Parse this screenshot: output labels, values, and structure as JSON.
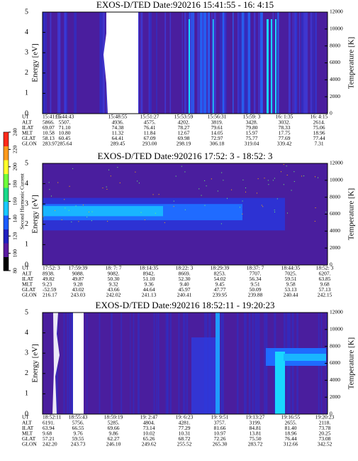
{
  "chart_data": [
    {
      "type": "spectrogram",
      "title": "EXOS-D/TED   Date:920216  15:41:55 - 16: 4:15",
      "ylabel": "Energy [eV]",
      "y2label": "Temperature [K]",
      "ylim": [
        0,
        5
      ],
      "yticks": [
        0,
        1,
        2,
        3,
        4,
        5
      ],
      "y2lim": [
        0,
        12000
      ],
      "y2ticks": [
        0,
        2000,
        4000,
        6000,
        8000,
        10000,
        12000
      ],
      "ephemeris": [
        {
          "label": "UT",
          "values": [
            "15:41:55",
            "15:44:43",
            "15:48:55",
            "15:51:27",
            "15:53:59",
            "15:56:31",
            "15:59: 3",
            "16: 1:35",
            "16: 4:15"
          ]
        },
        {
          "label": "ALT",
          "values": [
            "5866.",
            "5507.",
            "4936.",
            "4575.",
            "4202.",
            "3819.",
            "3428.",
            "3032.",
            "2614."
          ]
        },
        {
          "label": "ILAT",
          "values": [
            "69.07",
            "71.10",
            "74.38",
            "76.41",
            "78.27",
            "79.61",
            "79.80",
            "78.33",
            "75.06"
          ]
        },
        {
          "label": "MLT",
          "values": [
            "10.58",
            "10.80",
            "11.32",
            "11.84",
            "12.67",
            "14.05",
            "15.97",
            "17.75",
            "18.96"
          ]
        },
        {
          "label": "GLAT",
          "values": [
            "58.13",
            "60.45",
            "64.41",
            "67.09",
            "69.98",
            "72.97",
            "75.77",
            "77.69",
            "77.44"
          ]
        },
        {
          "label": "GLON",
          "values": [
            "283.97",
            "285.64",
            "289.45",
            "293.00",
            "298.19",
            "306.18",
            "319.04",
            "339.42",
            "7.31"
          ]
        }
      ]
    },
    {
      "type": "spectrogram",
      "title": "EXOS-D/TED   Date:920216  17:52: 3 - 18:52: 3",
      "ylabel": "Energy [eV]",
      "y2label": "Temperature [K]",
      "ylim": [
        0,
        5
      ],
      "yticks": [
        0,
        1,
        2,
        3,
        4,
        5
      ],
      "y2lim": [
        0,
        12000
      ],
      "y2ticks": [
        0,
        2000,
        4000,
        6000,
        8000,
        10000,
        12000
      ],
      "ephemeris": [
        {
          "label": "UT",
          "values": [
            "17:52: 3",
            "17:59:39",
            "18: 7: 7",
            "18:14:35",
            "18:22: 3",
            "18:29:39",
            "18:37: 7",
            "18:44:35",
            "18:52: 3"
          ]
        },
        {
          "label": "ALT",
          "values": [
            "8938.",
            "9088.",
            "9082.",
            "8942.",
            "8669.",
            "8253.",
            "7707.",
            "7025.",
            "6207."
          ]
        },
        {
          "label": "ILAT",
          "values": [
            "49.82",
            "49.87",
            "50.30",
            "51.10",
            "52.30",
            "54.02",
            "56.34",
            "59.51",
            "63.85"
          ]
        },
        {
          "label": "MLT",
          "values": [
            "9.23",
            "9.28",
            "9.32",
            "9.36",
            "9.40",
            "9.45",
            "9.51",
            "9.58",
            "9.68"
          ]
        },
        {
          "label": "GLAT",
          "values": [
            "-52.59",
            "43.02",
            "43.66",
            "44.64",
            "45.97",
            "47.77",
            "50.09",
            "53.13",
            "57.13"
          ]
        },
        {
          "label": "GLON",
          "values": [
            "216.17",
            "243.03",
            "242.02",
            "241.13",
            "240.41",
            "239.95",
            "239.88",
            "240.44",
            "242.15"
          ]
        }
      ]
    },
    {
      "type": "spectrogram",
      "title": "EXOS-D/TED   Date:920216  18:52:11 - 19:20:23",
      "ylabel": "Energy [eV]",
      "y2label": "Temperature [K]",
      "ylim": [
        0,
        5
      ],
      "yticks": [
        0,
        1,
        2,
        3,
        4,
        5
      ],
      "y2lim": [
        0,
        12000
      ],
      "y2ticks": [
        0,
        2000,
        4000,
        6000,
        8000,
        10000,
        12000
      ],
      "ephemeris": [
        {
          "label": "UT",
          "values": [
            "18:52:11",
            "18:55:43",
            "18:59:19",
            "19: 2:47",
            "19: 6:23",
            "19: 9:51",
            "19:13:27",
            "19:16:55",
            "19:20:23"
          ]
        },
        {
          "label": "ALT",
          "values": [
            "6191.",
            "5756.",
            "5285.",
            "4804.",
            "4281.",
            "3757.",
            "3199.",
            "2655.",
            "2118."
          ]
        },
        {
          "label": "ILAT",
          "values": [
            "63.94",
            "66.55",
            "69.66",
            "73.14",
            "77.29",
            "81.66",
            "84.81",
            "81.40",
            "73.78"
          ]
        },
        {
          "label": "MLT",
          "values": [
            "9.68",
            "9.76",
            "9.86",
            "10.02",
            "10.31",
            "10.97",
            "13.81",
            "18.96",
            "20.25"
          ]
        },
        {
          "label": "GLAT",
          "values": [
            "57.21",
            "59.55",
            "62.27",
            "65.26",
            "68.72",
            "72.26",
            "75.50",
            "76.44",
            "73.08"
          ]
        },
        {
          "label": "GLON",
          "values": [
            "242.20",
            "243.73",
            "246.10",
            "249.62",
            "255.52",
            "265.30",
            "283.72",
            "312.66",
            "342.52"
          ]
        }
      ]
    }
  ],
  "colorbar": {
    "label": "Second Harmonic Current",
    "ticks": [
      80,
      100,
      120,
      140,
      160,
      180,
      200,
      220,
      240
    ],
    "lim": [
      80,
      240
    ]
  }
}
